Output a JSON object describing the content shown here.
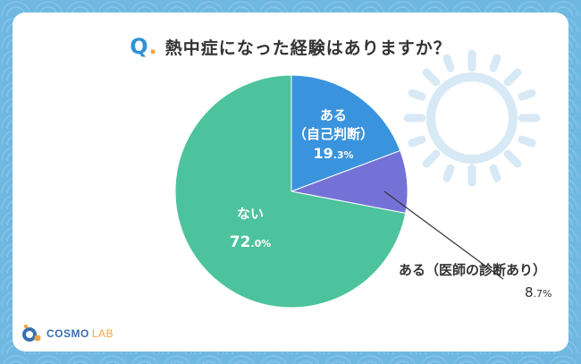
{
  "title": {
    "q_mark": "Q",
    "q_dot": ".",
    "text": "熱中症になった経験はありますか？"
  },
  "chart_data": {
    "type": "pie",
    "series": [
      {
        "label": "ある",
        "sublabel": "（自己判断）",
        "pct_main": "19",
        "pct_dec": ".3%",
        "value": 19.3,
        "color": "#3a93dd"
      },
      {
        "label": "ある（医師の診断あり）",
        "pct_main": "8",
        "pct_dec": ".7%",
        "value": 8.7,
        "color": "#7472d6"
      },
      {
        "label": "ない",
        "pct_main": "72",
        "pct_dec": ".0%",
        "value": 72.0,
        "color": "#4cc39c"
      }
    ],
    "start": "12 o'clock",
    "direction": "clockwise"
  },
  "decoration": {
    "sun_icon": "sun-icon",
    "sun_color": "#d7e9f5"
  },
  "logo": {
    "name": "COSMO",
    "suffix": "LAB",
    "icon": "cosmo-logo-icon"
  }
}
